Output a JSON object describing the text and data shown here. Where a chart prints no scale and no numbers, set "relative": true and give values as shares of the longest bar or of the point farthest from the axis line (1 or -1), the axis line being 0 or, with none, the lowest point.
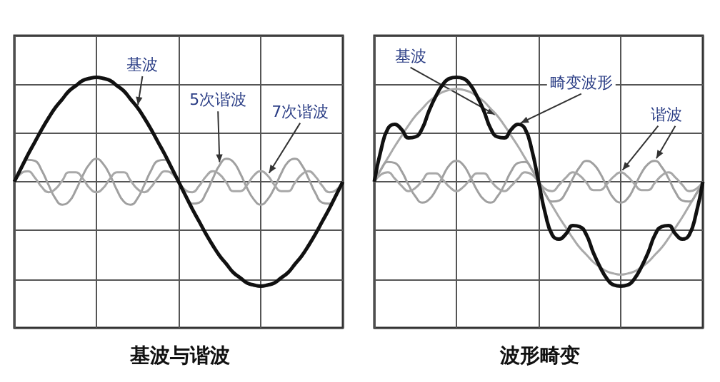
{
  "chart_data": [
    {
      "type": "line",
      "title": "基波与谐波",
      "relative": true,
      "grid": true,
      "marker": "none",
      "tick_labels": false,
      "categories": [
        null,
        null,
        null,
        null,
        null,
        null,
        null,
        null,
        null,
        null,
        null,
        null,
        null,
        null,
        null,
        null,
        null,
        null,
        null,
        null,
        null,
        null,
        null,
        null,
        null,
        null,
        null,
        null,
        null,
        null,
        null,
        null,
        null,
        null,
        null,
        null,
        null,
        null,
        null,
        null,
        null,
        null,
        null,
        null,
        null,
        null,
        null,
        null,
        null
      ],
      "series": [
        {
          "name": "基波",
          "color": "#111111",
          "values": [
            0,
            0.13,
            0.26,
            0.38,
            0.5,
            0.61,
            0.71,
            0.79,
            0.87,
            0.92,
            0.97,
            0.99,
            1,
            0.99,
            0.97,
            0.92,
            0.87,
            0.79,
            0.71,
            0.61,
            0.5,
            0.38,
            0.26,
            0.13,
            0,
            -0.13,
            -0.26,
            -0.38,
            -0.5,
            -0.61,
            -0.71,
            -0.79,
            -0.87,
            -0.92,
            -0.97,
            -0.99,
            -1,
            -0.99,
            -0.97,
            -0.92,
            -0.87,
            -0.79,
            -0.71,
            -0.61,
            -0.5,
            -0.38,
            -0.26,
            -0.13,
            0
          ]
        },
        {
          "name": "5次谐波",
          "color": "#a0a0a0",
          "values": [
            0,
            0.13,
            0.21,
            0.2,
            0.11,
            -0.03,
            -0.16,
            -0.22,
            -0.19,
            -0.08,
            0.06,
            0.17,
            0.22,
            0.17,
            0.06,
            -0.08,
            -0.19,
            -0.22,
            -0.16,
            -0.03,
            0.11,
            0.2,
            0.21,
            0.13,
            0,
            -0.13,
            -0.21,
            -0.2,
            -0.11,
            0.03,
            0.16,
            0.22,
            0.19,
            0.08,
            -0.06,
            -0.17,
            -0.22,
            -0.17,
            -0.06,
            0.08,
            0.19,
            0.22,
            0.16,
            0.03,
            -0.11,
            -0.2,
            -0.21,
            -0.13,
            0
          ]
        },
        {
          "name": "7次谐波",
          "color": "#a8a8a8",
          "values": [
            0,
            0.08,
            0.1,
            0.04,
            -0.05,
            -0.1,
            -0.07,
            0.01,
            0.09,
            0.09,
            0.03,
            -0.06,
            -0.1,
            -0.06,
            0.03,
            0.09,
            0.09,
            0.01,
            -0.07,
            -0.1,
            -0.05,
            0.04,
            0.1,
            0.08,
            0,
            -0.08,
            -0.1,
            -0.04,
            0.05,
            0.1,
            0.07,
            -0.01,
            -0.09,
            -0.09,
            -0.03,
            0.06,
            0.1,
            0.06,
            -0.03,
            -0.09,
            -0.09,
            -0.01,
            0.07,
            0.1,
            0.05,
            -0.04,
            -0.1,
            -0.08,
            0
          ]
        }
      ]
    },
    {
      "type": "line",
      "title": "波形畸变",
      "relative": true,
      "grid": true,
      "marker": "none",
      "tick_labels": false,
      "annotations": [
        "谐波"
      ],
      "categories": [
        null,
        null,
        null,
        null,
        null,
        null,
        null,
        null,
        null,
        null,
        null,
        null,
        null,
        null,
        null,
        null,
        null,
        null,
        null,
        null,
        null,
        null,
        null,
        null,
        null,
        null,
        null,
        null,
        null,
        null,
        null,
        null,
        null,
        null,
        null,
        null,
        null,
        null,
        null,
        null,
        null,
        null,
        null,
        null,
        null,
        null,
        null,
        null,
        null
      ],
      "series": [
        {
          "name": "基波",
          "color": "#aaaaaa",
          "values": [
            0,
            0.12,
            0.23,
            0.34,
            0.44,
            0.54,
            0.63,
            0.7,
            0.77,
            0.82,
            0.86,
            0.88,
            0.89,
            0.88,
            0.86,
            0.82,
            0.77,
            0.7,
            0.63,
            0.54,
            0.44,
            0.34,
            0.23,
            0.12,
            0,
            -0.12,
            -0.23,
            -0.34,
            -0.44,
            -0.54,
            -0.63,
            -0.7,
            -0.77,
            -0.82,
            -0.86,
            -0.88,
            -0.89,
            -0.88,
            -0.86,
            -0.82,
            -0.77,
            -0.7,
            -0.63,
            -0.54,
            -0.44,
            -0.34,
            -0.23,
            -0.12,
            0
          ]
        },
        {
          "name": "畸变波形",
          "color": "#111111",
          "values": [
            0,
            0.31,
            0.51,
            0.55,
            0.5,
            0.42,
            0.43,
            0.51,
            0.68,
            0.82,
            0.93,
            0.99,
            1,
            0.99,
            0.93,
            0.82,
            0.68,
            0.51,
            0.43,
            0.42,
            0.5,
            0.55,
            0.51,
            0.31,
            0,
            -0.31,
            -0.51,
            -0.55,
            -0.5,
            -0.42,
            -0.43,
            -0.51,
            -0.68,
            -0.82,
            -0.93,
            -0.99,
            -1,
            -0.99,
            -0.93,
            -0.82,
            -0.68,
            -0.51,
            -0.43,
            -0.42,
            -0.5,
            -0.55,
            -0.51,
            -0.31,
            0
          ]
        },
        {
          "color": "#a0a0a0",
          "values": [
            0,
            0.12,
            0.19,
            0.18,
            0.1,
            -0.03,
            -0.14,
            -0.2,
            -0.17,
            -0.08,
            0.05,
            0.16,
            0.2,
            0.16,
            0.05,
            -0.08,
            -0.17,
            -0.2,
            -0.14,
            -0.03,
            0.1,
            0.18,
            0.19,
            0.12,
            0,
            -0.12,
            -0.19,
            -0.18,
            -0.1,
            0.03,
            0.14,
            0.2,
            0.17,
            0.08,
            -0.05,
            -0.16,
            -0.2,
            -0.16,
            -0.05,
            0.08,
            0.17,
            0.2,
            0.14,
            0.03,
            -0.1,
            -0.18,
            -0.19,
            -0.12,
            0
          ]
        },
        {
          "color": "#a8a8a8",
          "values": [
            0,
            0.07,
            0.09,
            0.03,
            -0.04,
            -0.09,
            -0.06,
            0.01,
            0.08,
            0.08,
            0.02,
            -0.05,
            -0.09,
            -0.05,
            0.02,
            0.08,
            0.08,
            0.01,
            -0.06,
            -0.09,
            -0.04,
            0.03,
            0.09,
            0.07,
            0,
            -0.07,
            -0.09,
            -0.03,
            0.04,
            0.09,
            0.06,
            -0.01,
            -0.08,
            -0.08,
            -0.02,
            0.05,
            0.09,
            0.05,
            -0.02,
            -0.08,
            -0.08,
            -0.01,
            0.06,
            0.09,
            0.04,
            -0.03,
            -0.09,
            -0.07,
            0
          ]
        }
      ]
    }
  ]
}
